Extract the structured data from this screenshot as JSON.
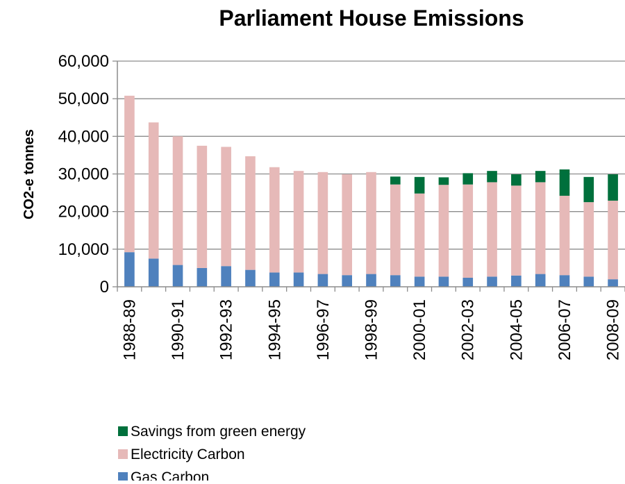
{
  "chart_data": {
    "type": "bar",
    "stacked": true,
    "title": "Parliament House Emissions",
    "ylabel": "CO2-e tonnes",
    "xlabel": "",
    "ylim": [
      0,
      60000
    ],
    "yticks": [
      0,
      10000,
      20000,
      30000,
      40000,
      50000,
      60000
    ],
    "ytick_labels": [
      "0",
      "10,000",
      "20,000",
      "30,000",
      "40,000",
      "50,000",
      "60,000"
    ],
    "grid": true,
    "legend_position": "bottom-left",
    "categories": [
      "1988-89",
      "1989-90",
      "1990-91",
      "1991-92",
      "1992-93",
      "1993-94",
      "1994-95",
      "1995-96",
      "1996-97",
      "1997-98",
      "1998-99",
      "1999-00",
      "2000-01",
      "2001-02",
      "2002-03",
      "2003-04",
      "2004-05",
      "2005-06",
      "2006-07",
      "2007-08",
      "2008-09"
    ],
    "xtick_labels": [
      "1988-89",
      "",
      "1990-91",
      "",
      "1992-93",
      "",
      "1994-95",
      "",
      "1996-97",
      "",
      "1998-99",
      "",
      "2000-01",
      "",
      "2002-03",
      "",
      "2004-05",
      "",
      "2006-07",
      "",
      "2008-09"
    ],
    "series": [
      {
        "name": "Gas Carbon",
        "color": "#4f81bd",
        "values": [
          9200,
          7500,
          5800,
          5000,
          5500,
          4500,
          3800,
          3800,
          3400,
          3100,
          3400,
          3100,
          2700,
          2700,
          2400,
          2700,
          3000,
          3400,
          3100,
          2700,
          2000
        ]
      },
      {
        "name": "Electricity  Carbon",
        "color": "#e6b9b8",
        "values": [
          41600,
          36200,
          34200,
          32500,
          31700,
          30200,
          28000,
          27000,
          27100,
          26800,
          27100,
          24100,
          22100,
          24400,
          24800,
          25100,
          23900,
          24400,
          21100,
          19800,
          20900
        ]
      },
      {
        "name": "Savings from green energy",
        "color": "#00703c",
        "values": [
          0,
          0,
          0,
          0,
          0,
          0,
          0,
          0,
          0,
          0,
          0,
          2100,
          4400,
          2000,
          3000,
          3000,
          3000,
          3000,
          7000,
          6700,
          7000
        ]
      }
    ],
    "legend_order": [
      "Savings from green energy",
      "Electricity  Carbon",
      "Gas Carbon"
    ]
  }
}
